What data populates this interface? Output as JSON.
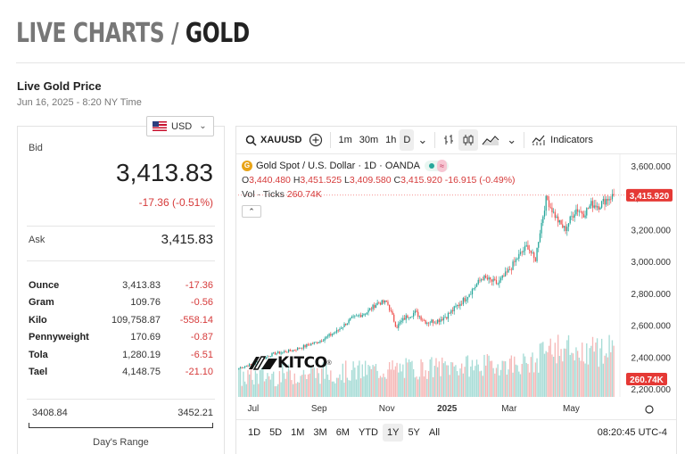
{
  "header": {
    "title_part1": "LIVE CHARTS",
    "title_slash": " / ",
    "title_part2": "GOLD"
  },
  "live": {
    "title": "Live Gold Price",
    "timestamp": "Jun 16, 2025 - 8:20 NY Time"
  },
  "currency": {
    "selected": "USD",
    "icon": "us-flag-icon"
  },
  "price": {
    "bid_label": "Bid",
    "bid": "3,413.83",
    "change": "-17.36 (-0.51%)",
    "ask_label": "Ask",
    "ask": "3,415.83",
    "units": [
      {
        "name": "Ounce",
        "price": "3,413.83",
        "change": "-17.36"
      },
      {
        "name": "Gram",
        "price": "109.76",
        "change": "-0.56"
      },
      {
        "name": "Kilo",
        "price": "109,758.87",
        "change": "-558.14"
      },
      {
        "name": "Pennyweight",
        "price": "170.69",
        "change": "-0.87"
      },
      {
        "name": "Tola",
        "price": "1,280.19",
        "change": "-6.51"
      },
      {
        "name": "Tael",
        "price": "4,148.75",
        "change": "-21.10"
      }
    ],
    "range_low": "3408.84",
    "range_high": "3452.21",
    "range_label": "Day's Range"
  },
  "toolbar": {
    "symbol": "XAUUSD",
    "intervals": [
      "1m",
      "30m",
      "1h",
      "D"
    ],
    "active_interval": "D",
    "indicators_label": "Indicators"
  },
  "legend": {
    "title": "Gold Spot / U.S. Dollar · 1D · OANDA",
    "o_label": "O",
    "o": "3,440.480",
    "h_label": "H",
    "h": "3,451.525",
    "l_label": "L",
    "l": "3,409.580",
    "c_label": "C",
    "c": "3,415.920",
    "chg": "-16.915 (-0.49%)",
    "vol_label": "Vol · Ticks",
    "vol": "260.74K"
  },
  "logo": {
    "text": "KITCO",
    "reg": "®"
  },
  "ranges": [
    "1D",
    "5D",
    "1M",
    "3M",
    "6M",
    "YTD",
    "1Y",
    "5Y",
    "All"
  ],
  "active_range": "1Y",
  "clock": "08:20:45 UTC-4",
  "chart_data": {
    "type": "candlestick",
    "y_ticks": [
      "3,600.000",
      "3,400.000",
      "3,200.000",
      "3,000.000",
      "2,800.000",
      "2,600.000",
      "2,400.000",
      "2,200.000"
    ],
    "y_tick_values": [
      3600,
      3400,
      3200,
      3000,
      2800,
      2600,
      2400,
      2200
    ],
    "ylim": [
      2150,
      3650
    ],
    "last_price_label": "3,415.920",
    "last_price": 3415.92,
    "volume_label": "260.74K",
    "x_ticks": [
      "Jul",
      "Sep",
      "Nov",
      "2025",
      "Mar",
      "May"
    ],
    "x_tick_positions": [
      0.04,
      0.215,
      0.395,
      0.555,
      0.72,
      0.885
    ],
    "anchors": [
      [
        0.0,
        2330
      ],
      [
        0.04,
        2360
      ],
      [
        0.09,
        2420
      ],
      [
        0.14,
        2440
      ],
      [
        0.19,
        2480
      ],
      [
        0.215,
        2500
      ],
      [
        0.26,
        2560
      ],
      [
        0.3,
        2640
      ],
      [
        0.34,
        2680
      ],
      [
        0.37,
        2740
      ],
      [
        0.395,
        2745
      ],
      [
        0.42,
        2590
      ],
      [
        0.445,
        2650
      ],
      [
        0.47,
        2680
      ],
      [
        0.5,
        2620
      ],
      [
        0.53,
        2630
      ],
      [
        0.555,
        2660
      ],
      [
        0.6,
        2760
      ],
      [
        0.65,
        2900
      ],
      [
        0.69,
        2860
      ],
      [
        0.72,
        2940
      ],
      [
        0.745,
        3030
      ],
      [
        0.77,
        3100
      ],
      [
        0.79,
        3000
      ],
      [
        0.8,
        3150
      ],
      [
        0.82,
        3400
      ],
      [
        0.84,
        3300
      ],
      [
        0.855,
        3240
      ],
      [
        0.87,
        3200
      ],
      [
        0.885,
        3270
      ],
      [
        0.9,
        3330
      ],
      [
        0.92,
        3300
      ],
      [
        0.94,
        3360
      ],
      [
        0.96,
        3350
      ],
      [
        0.98,
        3390
      ],
      [
        1.0,
        3415
      ]
    ]
  }
}
